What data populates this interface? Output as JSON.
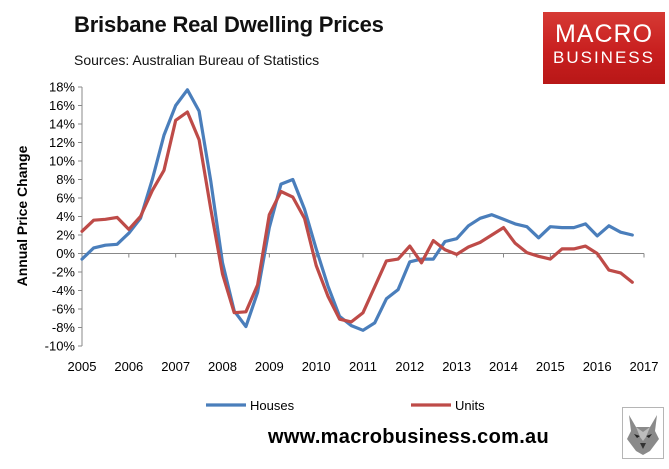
{
  "header": {
    "title": "Brisbane Real Dwelling Prices",
    "subtitle": "Sources: Australian Bureau of Statistics"
  },
  "logo": {
    "line1": "MACRO",
    "line2": "BUSINESS",
    "color": "#cc2222"
  },
  "footer": {
    "website": "www.macrobusiness.com.au",
    "icon": "wolf-logo-icon"
  },
  "chart_data": {
    "type": "line",
    "ylabel": "Annual Price Change",
    "xlabel": "",
    "xlim": [
      2005,
      2017
    ],
    "ylim": [
      -10,
      18
    ],
    "x_ticks": [
      2005,
      2006,
      2007,
      2008,
      2009,
      2010,
      2011,
      2012,
      2013,
      2014,
      2015,
      2016,
      2017
    ],
    "x_tick_labels": [
      "2005",
      "2006",
      "2007",
      "2008",
      "2009",
      "2010",
      "2011",
      "2012",
      "2013",
      "2014",
      "2015",
      "2016",
      "2017"
    ],
    "y_ticks": [
      -10,
      -8,
      -6,
      -4,
      -2,
      0,
      2,
      4,
      6,
      8,
      10,
      12,
      14,
      16,
      18
    ],
    "y_tick_labels": [
      "-10%",
      "-8%",
      "-6%",
      "-4%",
      "-2%",
      "0%",
      "2%",
      "4%",
      "6%",
      "8%",
      "10%",
      "12%",
      "14%",
      "16%",
      "18%"
    ],
    "grid": false,
    "legend_position": "bottom",
    "series": [
      {
        "name": "Houses",
        "color": "#4a7ebb",
        "x": [
          2005.0,
          2005.25,
          2005.5,
          2005.75,
          2006.0,
          2006.25,
          2006.5,
          2006.75,
          2007.0,
          2007.25,
          2007.5,
          2007.75,
          2008.0,
          2008.25,
          2008.5,
          2008.75,
          2009.0,
          2009.25,
          2009.5,
          2009.75,
          2010.0,
          2010.25,
          2010.5,
          2010.75,
          2011.0,
          2011.25,
          2011.5,
          2011.75,
          2012.0,
          2012.25,
          2012.5,
          2012.75,
          2013.0,
          2013.25,
          2013.5,
          2013.75,
          2014.0,
          2014.25,
          2014.5,
          2014.75,
          2015.0,
          2015.25,
          2015.5,
          2015.75,
          2016.0,
          2016.25,
          2016.5,
          2016.75
        ],
        "values": [
          -0.6,
          0.6,
          0.9,
          1.0,
          2.2,
          3.8,
          8.0,
          12.8,
          16.0,
          17.7,
          15.4,
          7.8,
          -1.0,
          -6.2,
          -7.9,
          -4.2,
          2.8,
          7.5,
          8.0,
          4.8,
          0.5,
          -3.5,
          -6.8,
          -7.8,
          -8.3,
          -7.5,
          -4.9,
          -3.9,
          -0.9,
          -0.6,
          -0.6,
          1.3,
          1.6,
          3.0,
          3.8,
          4.2,
          3.7,
          3.2,
          2.9,
          1.7,
          2.9,
          2.8,
          2.8,
          3.2,
          1.9,
          3.0,
          2.3,
          2.0
        ]
      },
      {
        "name": "Units",
        "color": "#be4b48",
        "x": [
          2005.0,
          2005.25,
          2005.5,
          2005.75,
          2006.0,
          2006.25,
          2006.5,
          2006.75,
          2007.0,
          2007.25,
          2007.5,
          2007.75,
          2008.0,
          2008.25,
          2008.5,
          2008.75,
          2009.0,
          2009.25,
          2009.5,
          2009.75,
          2010.0,
          2010.25,
          2010.5,
          2010.75,
          2011.0,
          2011.25,
          2011.5,
          2011.75,
          2012.0,
          2012.25,
          2012.5,
          2012.75,
          2013.0,
          2013.25,
          2013.5,
          2013.75,
          2014.0,
          2014.25,
          2014.5,
          2014.75,
          2015.0,
          2015.25,
          2015.5,
          2015.75,
          2016.0,
          2016.25,
          2016.5,
          2016.75
        ],
        "values": [
          2.4,
          3.6,
          3.7,
          3.9,
          2.6,
          4.0,
          6.8,
          9.0,
          14.4,
          15.3,
          12.3,
          4.8,
          -2.2,
          -6.4,
          -6.3,
          -3.4,
          4.2,
          6.7,
          6.1,
          3.8,
          -1.3,
          -4.6,
          -7.1,
          -7.4,
          -6.4,
          -3.6,
          -0.8,
          -0.6,
          0.8,
          -1.0,
          1.4,
          0.4,
          -0.1,
          0.7,
          1.2,
          2.0,
          2.8,
          1.1,
          0.1,
          -0.3,
          -0.6,
          0.5,
          0.5,
          0.8,
          0.0,
          -1.8,
          -2.1,
          -3.1
        ]
      }
    ]
  }
}
